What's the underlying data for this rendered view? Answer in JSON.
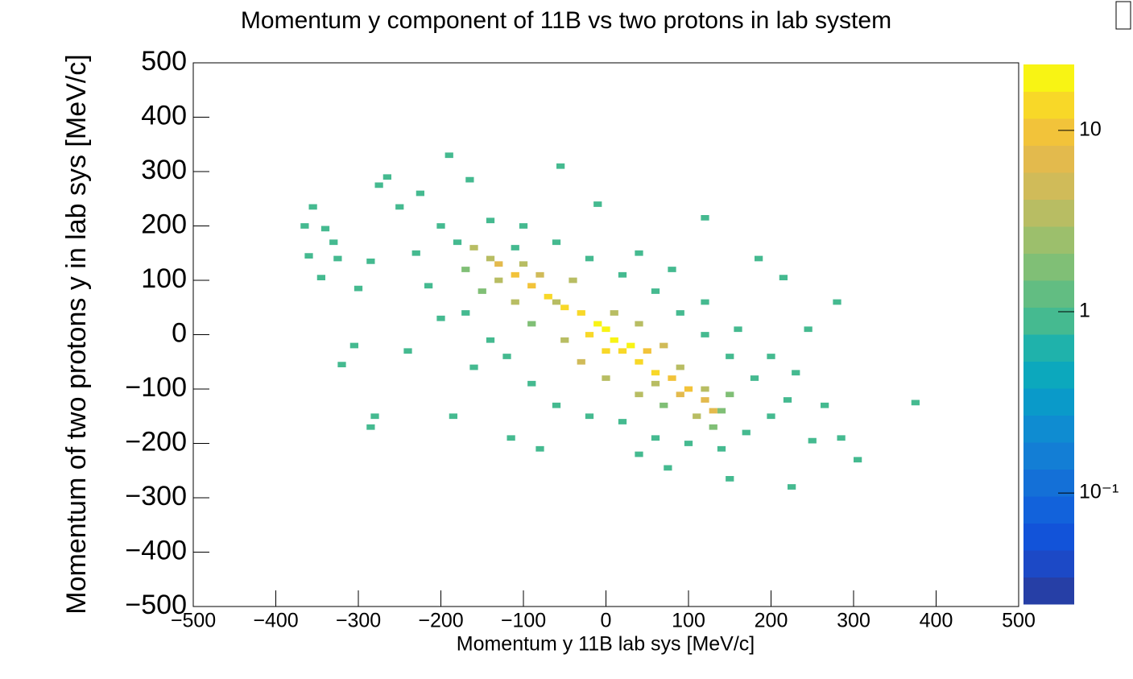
{
  "chart_data": {
    "type": "heatmap",
    "title": "Momentum y component of 11B vs two protons in lab system",
    "xlabel": "Momentum y 11B  lab sys [MeV/c]",
    "ylabel": "Momentum of two protons y in lab sys [MeV/c]",
    "xlim": [
      -500,
      500
    ],
    "ylim": [
      -500,
      500
    ],
    "xticks": [
      {
        "value": -500,
        "label": "−500"
      },
      {
        "value": -400,
        "label": "−400"
      },
      {
        "value": -300,
        "label": "−300"
      },
      {
        "value": -200,
        "label": "−200"
      },
      {
        "value": -100,
        "label": "−100"
      },
      0,
      100,
      200,
      300,
      400,
      500
    ],
    "yticks": [
      {
        "value": -500,
        "label": "−500"
      },
      {
        "value": -400,
        "label": "−400"
      },
      {
        "value": -300,
        "label": "−300"
      },
      {
        "value": -200,
        "label": "−200"
      },
      {
        "value": -100,
        "label": "−100"
      },
      0,
      100,
      200,
      300,
      400,
      500
    ],
    "zlim": [
      0.0244,
      23.1
    ],
    "zlog": true,
    "zticks": [
      {
        "value": 0.1,
        "label": "10⁻¹"
      },
      1,
      10
    ],
    "palette": [
      "#263fa6",
      "#1c49c6",
      "#1253d9",
      "#1262db",
      "#1470d7",
      "#137ed5",
      "#0f8cd1",
      "#0a9ac9",
      "#0ca8bd",
      "#1fb2ab",
      "#45ba90",
      "#62bd82",
      "#80bf76",
      "#9cbf6c",
      "#b8bd63",
      "#d0bb59",
      "#e3ba4d",
      "#f2c33a",
      "#f8d828",
      "#f8f414"
    ],
    "x": [
      -365,
      -355,
      -340,
      -330,
      -360,
      -345,
      -325,
      -300,
      -285,
      -275,
      -265,
      -250,
      -225,
      -190,
      -165,
      -55,
      -10,
      120,
      185,
      215,
      280,
      245,
      375,
      305,
      285,
      225,
      -285,
      -280,
      -320,
      -305,
      -240,
      -185,
      -115,
      -80,
      40,
      75,
      150,
      250,
      265,
      -200,
      -180,
      -230,
      -215,
      -170,
      -200,
      -140,
      -120,
      -160,
      -90,
      -60,
      -20,
      20,
      60,
      100,
      140,
      170,
      200,
      220,
      180,
      150,
      120,
      90,
      60,
      20,
      -20,
      -60,
      -100,
      -140,
      -110,
      40,
      80,
      120,
      160,
      200,
      230,
      -160,
      -170,
      -140,
      -130,
      -150,
      -100,
      -80,
      -110,
      -60,
      -40,
      -90,
      -50,
      -30,
      0,
      10,
      40,
      70,
      90,
      120,
      140,
      110,
      70,
      40,
      150,
      130,
      60,
      -130,
      -110,
      -90,
      -70,
      -50,
      -30,
      -10,
      0,
      10,
      20,
      30,
      40,
      60,
      80,
      100,
      120,
      -20,
      0,
      50,
      90,
      130
    ],
    "y": [
      200,
      235,
      195,
      170,
      145,
      105,
      140,
      85,
      135,
      275,
      290,
      235,
      260,
      330,
      285,
      310,
      240,
      215,
      140,
      105,
      60,
      10,
      -125,
      -230,
      -190,
      -280,
      -170,
      -150,
      -55,
      -20,
      -30,
      -150,
      -190,
      -210,
      -220,
      -245,
      -265,
      -195,
      -130,
      200,
      170,
      150,
      90,
      40,
      30,
      -10,
      -40,
      -60,
      -90,
      -130,
      -150,
      -160,
      -190,
      -200,
      -210,
      -180,
      -150,
      -120,
      -80,
      -40,
      0,
      40,
      80,
      110,
      140,
      170,
      200,
      210,
      160,
      150,
      120,
      60,
      10,
      -40,
      -70,
      160,
      120,
      140,
      100,
      80,
      130,
      110,
      60,
      60,
      100,
      20,
      -10,
      -50,
      -80,
      40,
      20,
      -20,
      -60,
      -100,
      -140,
      -150,
      -130,
      -110,
      -110,
      -170,
      -90,
      130,
      110,
      90,
      70,
      50,
      40,
      20,
      10,
      -10,
      -30,
      -20,
      -50,
      -70,
      -80,
      -100,
      -120,
      0,
      -30,
      -30,
      -110,
      -140
    ],
    "values": [
      1,
      1,
      1,
      1,
      1,
      1,
      1,
      1,
      1,
      1,
      1,
      1,
      1,
      1,
      1,
      1,
      1,
      1,
      1,
      1,
      1,
      1,
      1,
      1,
      1,
      1,
      1,
      1,
      1,
      1,
      1,
      1,
      1,
      1,
      1,
      1,
      1,
      1,
      1,
      1,
      1,
      1,
      1,
      1,
      1,
      1,
      1,
      1,
      1,
      1,
      1,
      1,
      1,
      1,
      1,
      1,
      1,
      1,
      1,
      1,
      1,
      1,
      1,
      1,
      1,
      1,
      1,
      1,
      1,
      1,
      1,
      1,
      1,
      1,
      1,
      3,
      2,
      4,
      3,
      2,
      4,
      5,
      3,
      4,
      3,
      2,
      4,
      5,
      3,
      3,
      4,
      5,
      4,
      3,
      2,
      3,
      2,
      3,
      2,
      2,
      3,
      8,
      9,
      10,
      12,
      14,
      15,
      18,
      20,
      19,
      16,
      17,
      14,
      12,
      11,
      10,
      8,
      15,
      13,
      9,
      7,
      7
    ]
  }
}
